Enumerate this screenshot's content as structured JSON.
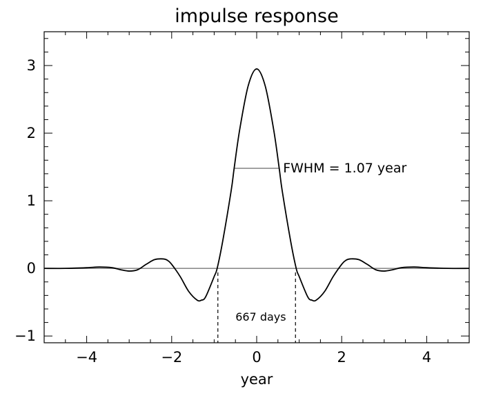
{
  "chart_data": {
    "type": "line",
    "title": "impulse response",
    "xlabel": "year",
    "ylabel": "",
    "xlim": [
      -5,
      5
    ],
    "ylim": [
      -1.1,
      3.5
    ],
    "grid": false,
    "legend": "none",
    "xticks": [
      -4,
      -2,
      0,
      2,
      4
    ],
    "xtick_labels": [
      "−4",
      "−2",
      "0",
      "2",
      "4"
    ],
    "yticks": [
      -1,
      0,
      1,
      2,
      3
    ],
    "ytick_labels": [
      "−1",
      "0",
      "1",
      "2",
      "3"
    ],
    "series": [
      {
        "x": [
          -5.0,
          -4.5,
          -4.0,
          -3.7,
          -3.4,
          -3.2,
          -3.0,
          -2.8,
          -2.6,
          -2.4,
          -2.2,
          -2.1,
          -2.0,
          -1.8,
          -1.6,
          -1.4,
          -1.3,
          -1.2,
          -1.0,
          -0.93,
          -0.8,
          -0.6,
          -0.53,
          -0.4,
          -0.2,
          0.0,
          0.2,
          0.4,
          0.53,
          0.6,
          0.8,
          0.93,
          1.0,
          1.2,
          1.3,
          1.4,
          1.6,
          1.8,
          2.0,
          2.1,
          2.2,
          2.4,
          2.6,
          2.8,
          3.0,
          3.2,
          3.4,
          3.7,
          4.0,
          4.5,
          5.0
        ],
        "y": [
          0.0,
          0.0,
          0.01,
          0.02,
          0.01,
          -0.02,
          -0.04,
          -0.02,
          0.06,
          0.13,
          0.14,
          0.12,
          0.06,
          -0.12,
          -0.34,
          -0.47,
          -0.47,
          -0.42,
          -0.12,
          0.0,
          0.4,
          1.15,
          1.48,
          2.05,
          2.7,
          2.95,
          2.7,
          2.05,
          1.48,
          1.15,
          0.4,
          0.0,
          -0.12,
          -0.42,
          -0.47,
          -0.47,
          -0.34,
          -0.12,
          0.06,
          0.12,
          0.14,
          0.13,
          0.06,
          -0.02,
          -0.04,
          -0.02,
          0.01,
          0.02,
          0.01,
          0.0,
          0.0
        ]
      }
    ],
    "reference_lines": {
      "zero_line_y": 0,
      "fwhm_line": {
        "x_start": -0.535,
        "x_end": 0.535,
        "y": 1.48
      },
      "dashed_markers": [
        {
          "x": -0.913,
          "y_top": -0.06
        },
        {
          "x": 0.913,
          "y_top": -0.06
        }
      ]
    },
    "annotations": [
      {
        "text": "FWHM = 1.07 year",
        "x": 0.62,
        "y": 1.48
      },
      {
        "text": "667 days",
        "x": -0.5,
        "y": -0.71
      }
    ],
    "colors": {
      "curve": "#000000",
      "reference": "#8c8c8c",
      "frame": "#000000"
    }
  }
}
